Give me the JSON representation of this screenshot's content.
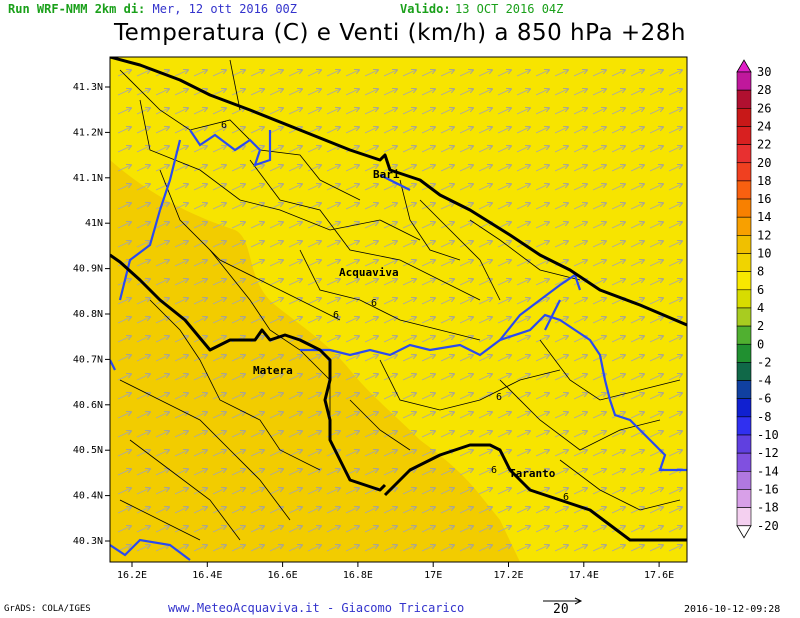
{
  "header": {
    "run_label": "Run WRF-NMM 2km di:",
    "run_date": "Mer, 12 ott 2016 00Z",
    "valid_label": "Valido:",
    "valid_date": "13 OCT 2016 04Z"
  },
  "title": "Temperatura (C) e Venti (km/h) a 850 hPa +28h",
  "map": {
    "lon_ticks": [
      "16.2E",
      "16.4E",
      "16.6E",
      "16.8E",
      "17E",
      "17.2E",
      "17.4E",
      "17.6E"
    ],
    "lat_ticks": [
      "41.3N",
      "41.2N",
      "41.1N",
      "41N",
      "40.9N",
      "40.8N",
      "40.7N",
      "40.6N",
      "40.5N",
      "40.4N",
      "40.3N"
    ],
    "cities": [
      "Bari",
      "Acquaviva",
      "Matera",
      "Taranto"
    ],
    "contour_labels": [
      "6",
      "6",
      "6",
      "6",
      "6",
      "6"
    ],
    "colors": {
      "zone_6": "#f5de00",
      "zone_8": "#f0c800",
      "sea_zone": "#f5de00",
      "wind_arrow": "#a8a8a8",
      "admin_border": "#2244ee"
    }
  },
  "colorbar": {
    "values": [
      "30",
      "28",
      "26",
      "24",
      "22",
      "20",
      "18",
      "16",
      "14",
      "12",
      "10",
      "8",
      "6",
      "4",
      "2",
      "0",
      "-2",
      "-4",
      "-6",
      "-8",
      "-10",
      "-12",
      "-14",
      "-16",
      "-18",
      "-20"
    ],
    "colors": [
      "#e020c8",
      "#c0189c",
      "#b01030",
      "#c81818",
      "#d82020",
      "#e83030",
      "#f04020",
      "#f86010",
      "#f88000",
      "#f8a000",
      "#f0c000",
      "#f0d400",
      "#f8e800",
      "#d8dc00",
      "#a8cc20",
      "#50b030",
      "#209030",
      "#106848",
      "#1040a0",
      "#1020d0",
      "#3030f0",
      "#6040e0",
      "#8050e0",
      "#b078e0",
      "#d8a0e8",
      "#f4d0f0",
      "#ffffff"
    ]
  },
  "footer": {
    "left": "GrADS: COLA/IGES",
    "center": "www.MeteoAcquaviva.it - Giacomo Tricarico",
    "scale_value": "20",
    "right": "2016-10-12-09:28"
  }
}
